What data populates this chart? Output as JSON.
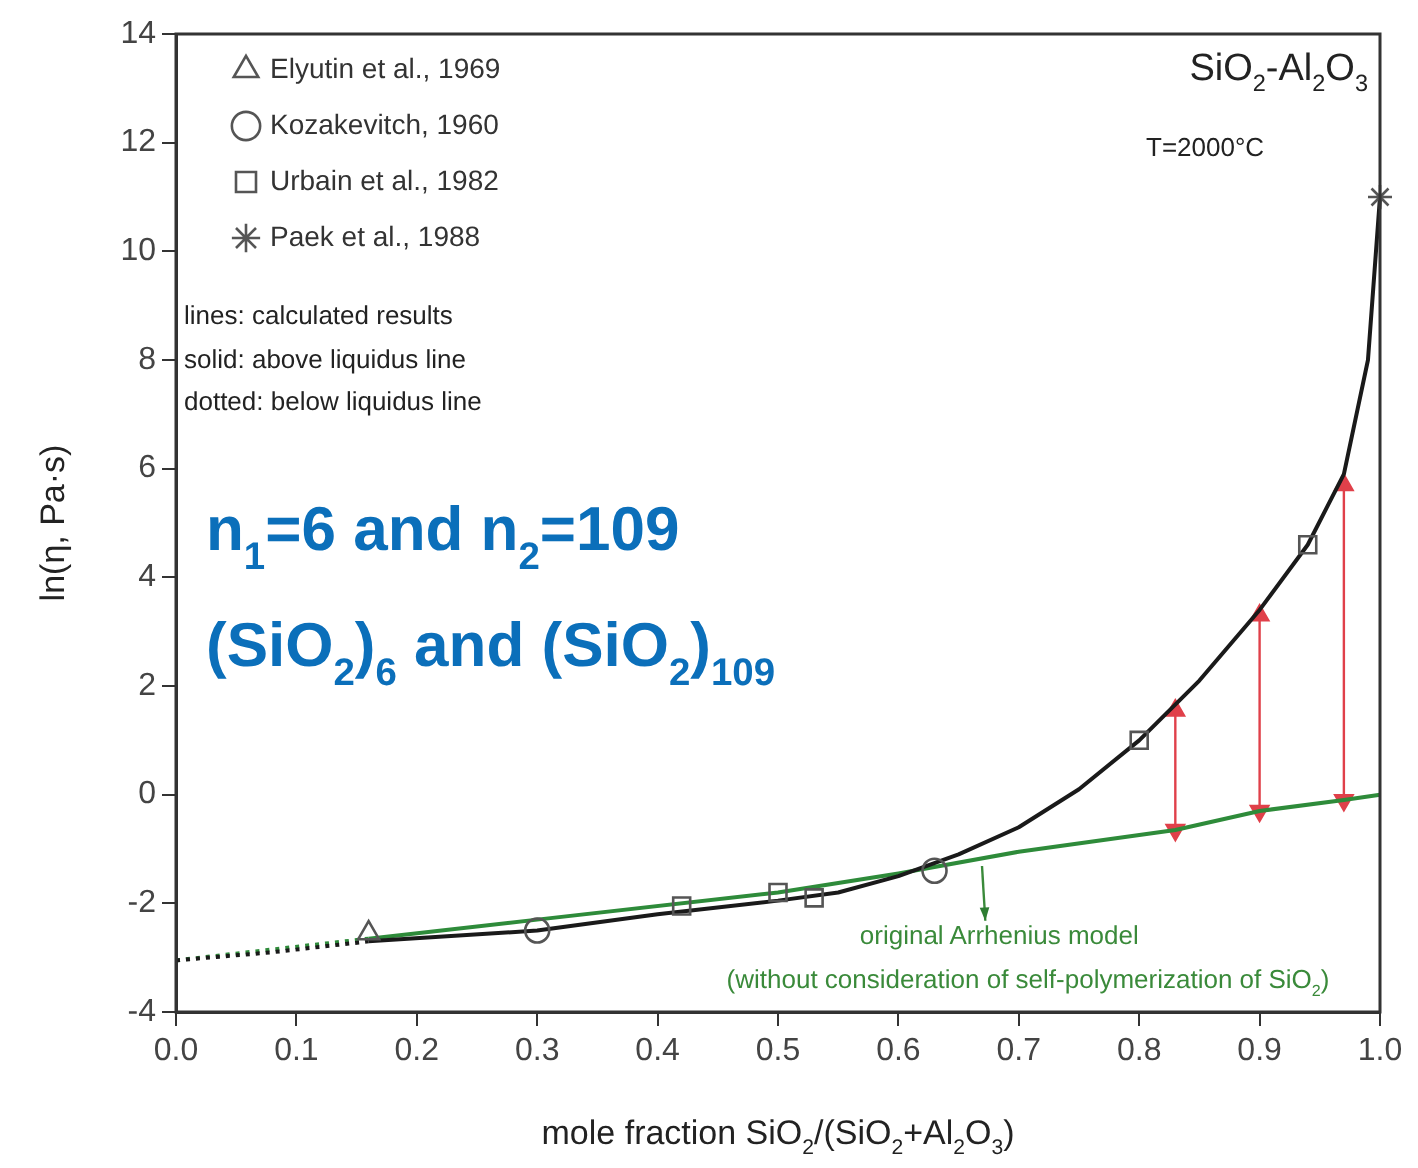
{
  "chart_data": {
    "type": "scatter",
    "xlabel": "mole fraction SiO$_{2}$/(SiO$_{2}$+Al$_{2}$O$_{3}$)",
    "ylabel": "ln(η, Pa·s)",
    "xlim": [
      0,
      1
    ],
    "ylim": [
      -4,
      14
    ],
    "xticks": [
      {
        "value": 0,
        "label": "0.0"
      },
      {
        "value": 0.1,
        "label": "0.1"
      },
      {
        "value": 0.2,
        "label": "0.2"
      },
      {
        "value": 0.3,
        "label": "0.3"
      },
      {
        "value": 0.4,
        "label": "0.4"
      },
      {
        "value": 0.5,
        "label": "0.5"
      },
      {
        "value": 0.6,
        "label": "0.6"
      },
      {
        "value": 0.7,
        "label": "0.7"
      },
      {
        "value": 0.8,
        "label": "0.8"
      },
      {
        "value": 0.9,
        "label": "0.9"
      },
      {
        "value": 1,
        "label": "1.0"
      }
    ],
    "yticks": [
      -4,
      -2,
      0,
      2,
      4,
      6,
      8,
      10,
      12,
      14
    ],
    "grid": false,
    "legend": "top left",
    "annotations": [
      "SiO$_{2}$-Al$_{2}$O$_{3}$",
      "T=2000°C",
      "lines: calculated results",
      "solid: above liquidus line",
      "dotted: below liquidus line",
      "n$_{1}$=6 and n$_{2}$=109",
      "(SiO$_{2}$)$_{6}$ and (SiO$_{2}$)$_{109}$",
      "original Arrhenius model",
      "(without consideration of self-polymerization of SiO$_{2}$)"
    ],
    "series": [
      {
        "name": "Elyutin et al., 1969",
        "type": "scatter",
        "marker": "triangle",
        "color": "#555555",
        "x": [
          0.16
        ],
        "values": [
          -2.55
        ]
      },
      {
        "name": "Kozakevitch, 1960",
        "type": "scatter",
        "marker": "circle",
        "color": "#555555",
        "x": [
          0.3,
          0.63
        ],
        "values": [
          -2.5,
          -1.4
        ]
      },
      {
        "name": "Urbain et al., 1982",
        "type": "scatter",
        "marker": "square",
        "color": "#555555",
        "x": [
          0.42,
          0.5,
          0.53,
          0.8,
          0.94
        ],
        "values": [
          -2.05,
          -1.8,
          -1.9,
          1.0,
          4.6
        ]
      },
      {
        "name": "Paek et al., 1988",
        "type": "scatter",
        "marker": "cross",
        "color": "#555555",
        "x": [
          1.0
        ],
        "values": [
          11
        ]
      },
      {
        "type": "line",
        "line_style": "dotted",
        "color": "#1a1a1a",
        "x": [
          0,
          0.08,
          0.16
        ],
        "values": [
          -3.05,
          -2.9,
          -2.7
        ]
      },
      {
        "type": "line",
        "line_style": "solid",
        "color": "#1a1a1a",
        "x": [
          0.16,
          0.3,
          0.4,
          0.5,
          0.55,
          0.6,
          0.65,
          0.7,
          0.75,
          0.8,
          0.85,
          0.9,
          0.94,
          0.97,
          0.99,
          1.0
        ],
        "values": [
          -2.7,
          -2.5,
          -2.2,
          -1.95,
          -1.8,
          -1.5,
          -1.1,
          -0.6,
          0.1,
          1.0,
          2.1,
          3.4,
          4.6,
          5.9,
          8,
          11
        ]
      },
      {
        "type": "line",
        "line_style": "dotted",
        "color": "#2e8b3a",
        "x": [
          0,
          0.08,
          0.16
        ],
        "values": [
          -3.05,
          -2.85,
          -2.65
        ]
      },
      {
        "type": "line",
        "line_style": "solid",
        "color": "#2e8b3a",
        "x": [
          0.16,
          0.3,
          0.5,
          0.6,
          0.7,
          0.83,
          0.9,
          0.97,
          1.0
        ],
        "values": [
          -2.65,
          -2.3,
          -1.8,
          -1.45,
          -1.05,
          -0.65,
          -0.3,
          -0.1,
          0
        ]
      },
      {
        "type": "line",
        "marker": "triangle",
        "color": "#e0404a",
        "x": [
          0.83,
          0.83
        ],
        "values": [
          -0.65,
          1.55
        ]
      },
      {
        "type": "line",
        "marker": "triangle",
        "color": "#e0404a",
        "x": [
          0.9,
          0.9
        ],
        "values": [
          -0.3,
          3.3
        ]
      },
      {
        "type": "line",
        "marker": "triangle",
        "color": "#e0404a",
        "x": [
          0.97,
          0.97
        ],
        "values": [
          -0.1,
          5.7
        ]
      }
    ]
  }
}
